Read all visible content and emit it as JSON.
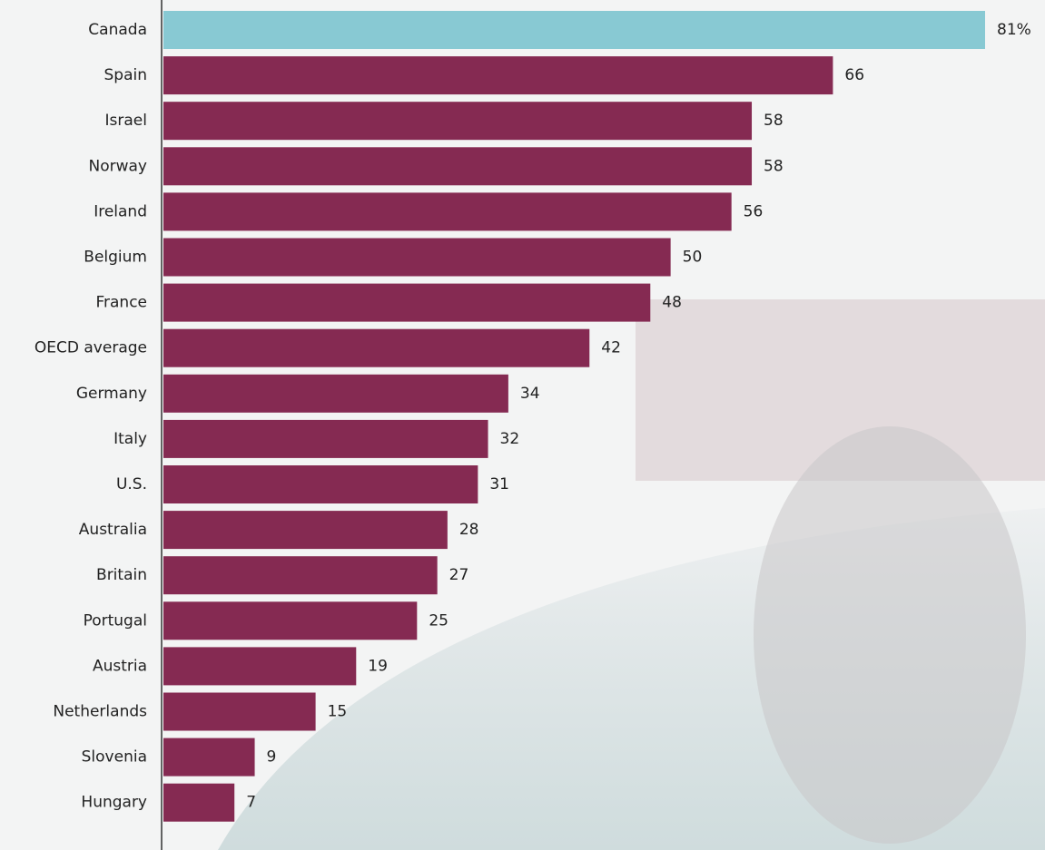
{
  "chart_data": {
    "type": "barh",
    "categories": [
      "Canada",
      "Spain",
      "Israel",
      "Norway",
      "Ireland",
      "Belgium",
      "France",
      "OECD average",
      "Germany",
      "Italy",
      "U.S.",
      "Australia",
      "Britain",
      "Portugal",
      "Austria",
      "Netherlands",
      "Slovenia",
      "Hungary"
    ],
    "values": [
      81,
      66,
      58,
      58,
      56,
      50,
      48,
      42,
      34,
      32,
      31,
      28,
      27,
      25,
      19,
      15,
      9,
      7
    ],
    "value_labels": [
      "81%",
      "66",
      "58",
      "58",
      "56",
      "50",
      "48",
      "42",
      "34",
      "32",
      "31",
      "28",
      "27",
      "25",
      "19",
      "15",
      "9",
      "7"
    ],
    "colors": [
      "#88c9d3",
      "#852a52",
      "#852a52",
      "#852a52",
      "#852a52",
      "#852a52",
      "#852a52",
      "#852a52",
      "#852a52",
      "#852a52",
      "#852a52",
      "#852a52",
      "#852a52",
      "#852a52",
      "#852a52",
      "#852a52",
      "#852a52",
      "#852a52"
    ]
  }
}
